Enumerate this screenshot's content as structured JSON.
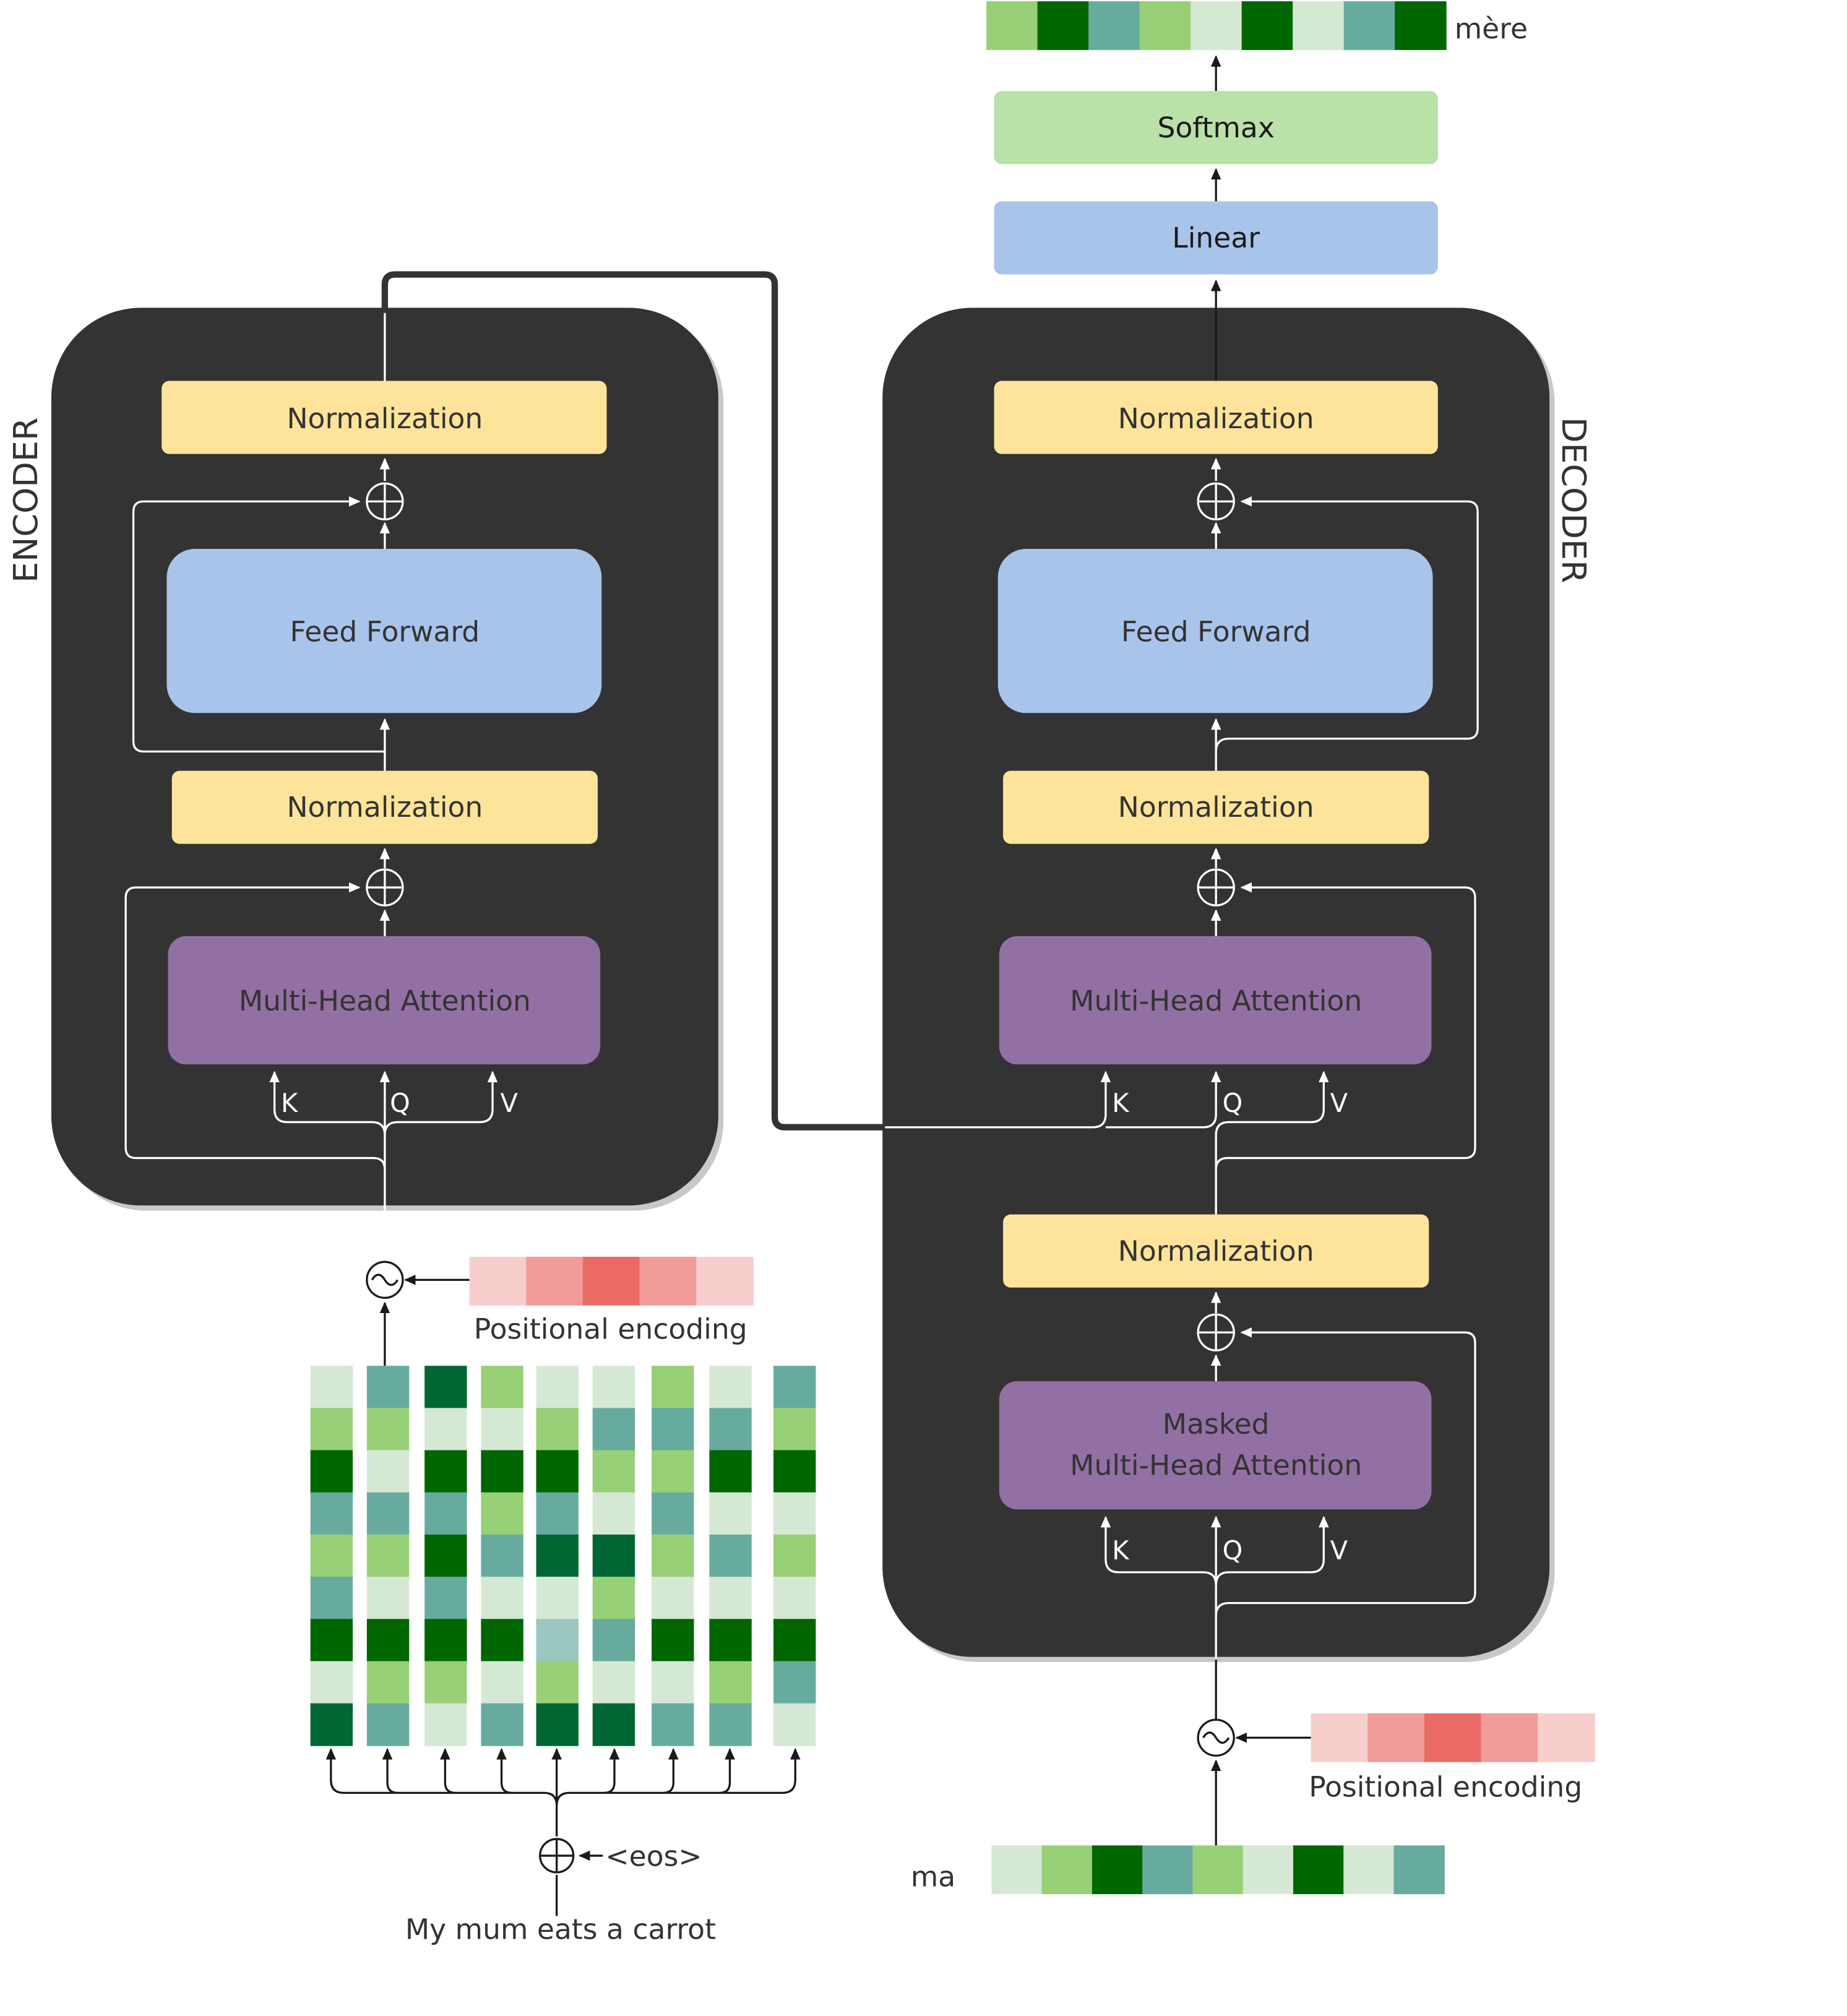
{
  "encoder": {
    "side_label": "ENCODER",
    "norm_top": "Normalization",
    "feed_forward": "Feed Forward",
    "norm_mid": "Normalization",
    "attention": "Multi-Head Attention",
    "k": "K",
    "q": "Q",
    "v": "V"
  },
  "decoder": {
    "side_label": "DECODER",
    "norm_top": "Normalization",
    "feed_forward": "Feed Forward",
    "norm_mid": "Normalization",
    "attention": "Multi-Head Attention",
    "k": "K",
    "q": "Q",
    "v": "V",
    "norm_low": "Normalization",
    "masked_line1": "Masked",
    "masked_line2": "Multi-Head Attention",
    "mk": "K",
    "mq": "Q",
    "mv": "V"
  },
  "linear": "Linear",
  "softmax": "Softmax",
  "output_word": "mère",
  "decoder_input_word": "ma",
  "encoder_input_sentence": "My mum eats a carrot",
  "eos_token": "<eos>",
  "positional_encoding_enc": "Positional encoding",
  "positional_encoding_dec": "Positional encoding",
  "colors": {
    "block_bg": "#333333",
    "norm": "#fde49a",
    "feed_forward": "#a9c4eb",
    "attention": "#9370a3",
    "softmax": "#b9e1a8",
    "linear": "#a9c4eb",
    "green_palette": [
      "#d5e8d4",
      "#97d077",
      "#006600",
      "#67ab9f",
      "#006633",
      "#9ac7bf"
    ],
    "pos_palette": [
      "#f8cecc",
      "#f19c99",
      "#ea6b66"
    ]
  },
  "output_vector": [
    1,
    2,
    3,
    1,
    0,
    2,
    0,
    3,
    2
  ],
  "decoder_input_vector": [
    0,
    1,
    2,
    3,
    1,
    0,
    2,
    0,
    3
  ],
  "positional_vector": [
    0,
    1,
    2,
    1,
    0
  ],
  "embedding_matrix": [
    [
      0,
      3,
      4,
      1,
      0,
      0,
      1,
      0,
      3
    ],
    [
      1,
      1,
      0,
      0,
      1,
      3,
      3,
      3,
      1
    ],
    [
      2,
      0,
      2,
      2,
      2,
      1,
      1,
      2,
      2
    ],
    [
      3,
      3,
      3,
      1,
      3,
      0,
      3,
      0,
      0
    ],
    [
      1,
      1,
      2,
      3,
      4,
      4,
      1,
      3,
      1
    ],
    [
      3,
      0,
      3,
      0,
      0,
      1,
      0,
      0,
      0
    ],
    [
      2,
      2,
      2,
      2,
      5,
      3,
      2,
      2,
      2
    ],
    [
      0,
      1,
      1,
      0,
      1,
      0,
      0,
      1,
      3
    ],
    [
      4,
      3,
      0,
      3,
      4,
      4,
      3,
      3,
      0
    ]
  ]
}
